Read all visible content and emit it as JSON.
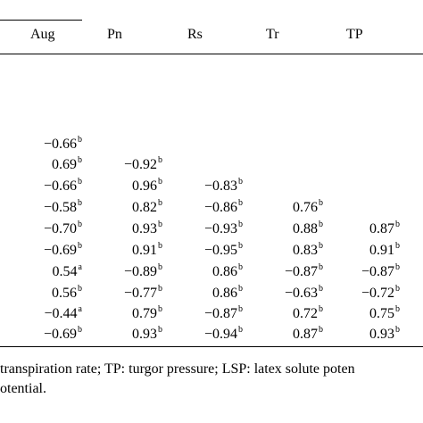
{
  "headers": [
    "Aug",
    "Pn",
    "Rs",
    "Tr",
    "TP"
  ],
  "rows": [
    {
      "stub": "",
      "cells": [
        {
          "v": "−0.66",
          "s": "b"
        }
      ]
    },
    {
      "stub": "",
      "cells": [
        {
          "v": "0.69",
          "s": "b"
        },
        {
          "v": "−0.92",
          "s": "b"
        }
      ]
    },
    {
      "stub": "",
      "cells": [
        {
          "v": "−0.66",
          "s": "b"
        },
        {
          "v": "0.96",
          "s": "b"
        },
        {
          "v": "−0.83",
          "s": "b"
        }
      ]
    },
    {
      "stub": "",
      "cells": [
        {
          "v": "−0.58",
          "s": "b"
        },
        {
          "v": "0.82",
          "s": "b"
        },
        {
          "v": "−0.86",
          "s": "b"
        },
        {
          "v": "0.76",
          "s": "b"
        }
      ]
    },
    {
      "stub": "",
      "cells": [
        {
          "v": "−0.70",
          "s": "b"
        },
        {
          "v": "0.93",
          "s": "b"
        },
        {
          "v": "−0.93",
          "s": "b"
        },
        {
          "v": "0.88",
          "s": "b"
        },
        {
          "v": "0.87",
          "s": "b"
        }
      ]
    },
    {
      "stub": "",
      "cells": [
        {
          "v": "−0.69",
          "s": "b"
        },
        {
          "v": "0.91",
          "s": "b"
        },
        {
          "v": "−0.95",
          "s": "b"
        },
        {
          "v": "0.83",
          "s": "b"
        },
        {
          "v": "0.91",
          "s": "b"
        }
      ]
    },
    {
      "stub": "",
      "cells": [
        {
          "v": "0.54",
          "s": "a"
        },
        {
          "v": "−0.89",
          "s": "b"
        },
        {
          "v": "0.86",
          "s": "b"
        },
        {
          "v": "−0.87",
          "s": "b"
        },
        {
          "v": "−0.87",
          "s": "b"
        }
      ]
    },
    {
      "stub": "",
      "cells": [
        {
          "v": "0.56",
          "s": "b"
        },
        {
          "v": "−0.77",
          "s": "b"
        },
        {
          "v": "0.86",
          "s": "b"
        },
        {
          "v": "−0.63",
          "s": "b"
        },
        {
          "v": "−0.72",
          "s": "b"
        }
      ]
    },
    {
      "stub": "",
      "cells": [
        {
          "v": "−0.44",
          "s": "a"
        },
        {
          "v": "0.79",
          "s": "b"
        },
        {
          "v": "−0.87",
          "s": "b"
        },
        {
          "v": "0.72",
          "s": "b"
        },
        {
          "v": "0.75",
          "s": "b"
        }
      ]
    },
    {
      "stub": "",
      "cells": [
        {
          "v": "−0.69",
          "s": "b"
        },
        {
          "v": "0.93",
          "s": "b"
        },
        {
          "v": "−0.94",
          "s": "b"
        },
        {
          "v": "0.87",
          "s": "b"
        },
        {
          "v": "0.93",
          "s": "b"
        }
      ]
    }
  ],
  "footnote": {
    "line1": "transpiration rate; TP: turgor pressure; LSP: latex solute poten",
    "line2": "otential."
  }
}
